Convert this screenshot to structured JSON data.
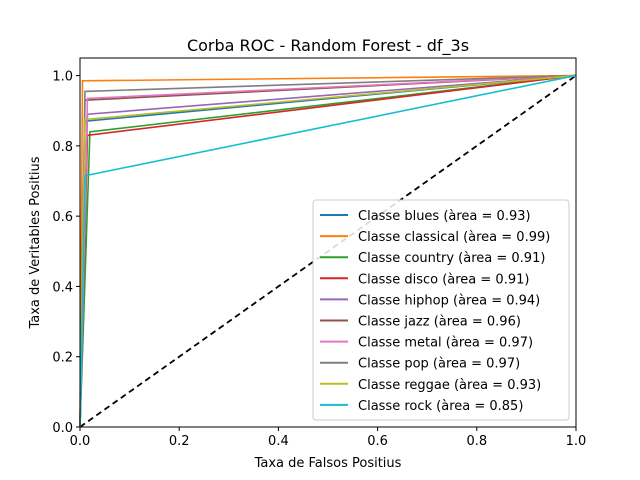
{
  "chart_data": {
    "type": "line",
    "title": "Corba ROC - Random Forest - df_3s",
    "xlabel": "Taxa de Falsos Positius",
    "ylabel": "Taxa de Veritables Positius",
    "xlim": [
      0,
      1
    ],
    "ylim": [
      0,
      1.05
    ],
    "xticks": [
      "0.0",
      "0.2",
      "0.4",
      "0.6",
      "0.8",
      "1.0"
    ],
    "yticks": [
      "0.0",
      "0.2",
      "0.4",
      "0.6",
      "0.8",
      "1.0"
    ],
    "grid": false,
    "legend_position": "lower-right",
    "diagonal": {
      "x": [
        0,
        1
      ],
      "y": [
        0,
        1
      ],
      "style": "dashed",
      "color": "#000000"
    },
    "series": [
      {
        "name": "Classe blues (àrea = 0.93)",
        "color": "#1f77b4",
        "x": [
          0,
          0.01,
          1
        ],
        "y": [
          0,
          0.87,
          1
        ]
      },
      {
        "name": "Classe classical (àrea = 0.99)",
        "color": "#ff7f0e",
        "x": [
          0,
          0.005,
          1
        ],
        "y": [
          0,
          0.985,
          1
        ]
      },
      {
        "name": "Classe country (àrea = 0.91)",
        "color": "#2ca02c",
        "x": [
          0,
          0.02,
          1
        ],
        "y": [
          0,
          0.84,
          1
        ]
      },
      {
        "name": "Classe disco (àrea = 0.91)",
        "color": "#d62728",
        "x": [
          0,
          0.015,
          1
        ],
        "y": [
          0,
          0.83,
          1
        ]
      },
      {
        "name": "Classe hiphop (àrea = 0.94)",
        "color": "#9467bd",
        "x": [
          0,
          0.015,
          1
        ],
        "y": [
          0,
          0.89,
          1
        ]
      },
      {
        "name": "Classe jazz (àrea = 0.96)",
        "color": "#8c564b",
        "x": [
          0,
          0.01,
          1
        ],
        "y": [
          0,
          0.93,
          1
        ]
      },
      {
        "name": "Classe metal (àrea = 0.97)",
        "color": "#e377c2",
        "x": [
          0,
          0.015,
          1
        ],
        "y": [
          0,
          0.935,
          1
        ]
      },
      {
        "name": "Classe pop (àrea = 0.97)",
        "color": "#7f7f7f",
        "x": [
          0,
          0.01,
          1
        ],
        "y": [
          0,
          0.955,
          1
        ]
      },
      {
        "name": "Classe reggae (àrea = 0.93)",
        "color": "#bcbd22",
        "x": [
          0,
          0.01,
          1
        ],
        "y": [
          0,
          0.875,
          1
        ]
      },
      {
        "name": "Classe rock (àrea = 0.85)",
        "color": "#17becf",
        "x": [
          0,
          0.01,
          1
        ],
        "y": [
          0,
          0.715,
          1
        ]
      }
    ]
  }
}
